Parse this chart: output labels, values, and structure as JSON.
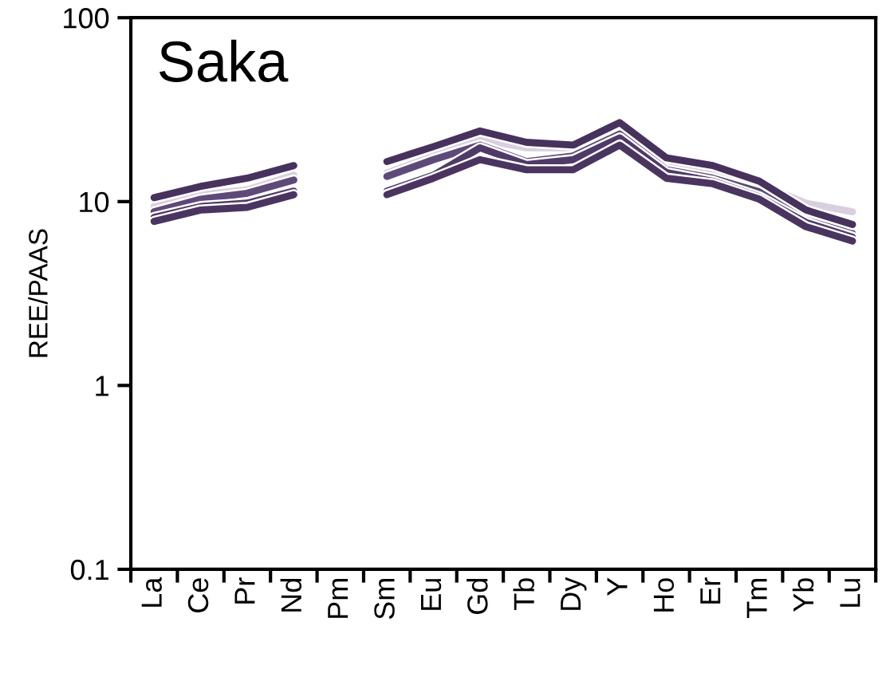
{
  "chart_data": {
    "type": "line",
    "title": "Saka",
    "ylabel": "REE/PAAS",
    "categories": [
      "La",
      "Ce",
      "Pr",
      "Nd",
      "Pm",
      "Sm",
      "Eu",
      "Gd",
      "Tb",
      "Dy",
      "Y",
      "Ho",
      "Er",
      "Tm",
      "Yb",
      "Lu"
    ],
    "series": [
      {
        "color": "#d9cfdf",
        "values": [
          9.4,
          10.9,
          11.6,
          13.9,
          null,
          14.3,
          17.7,
          21.8,
          19.6,
          19.6,
          25.9,
          16.2,
          14.6,
          12.5,
          9.8,
          8.8
        ]
      },
      {
        "color": "#5e4a78",
        "values": [
          8.8,
          10.3,
          11.1,
          13.1,
          null,
          13.7,
          16.9,
          20.3,
          16.5,
          17.7,
          23.3,
          14.9,
          13.4,
          11.3,
          7.9,
          6.7
        ]
      },
      {
        "color": "#4f3a68",
        "values": [
          8.2,
          9.4,
          9.8,
          11.4,
          null,
          11.4,
          13.9,
          19.6,
          15.9,
          16.9,
          22.2,
          14.4,
          12.9,
          10.6,
          7.7,
          6.4
        ]
      },
      {
        "color": "#4a3560",
        "values": [
          7.8,
          9.0,
          9.3,
          10.9,
          null,
          10.9,
          13.4,
          16.9,
          14.9,
          14.9,
          20.3,
          13.4,
          12.5,
          10.3,
          7.3,
          6.1
        ]
      },
      {
        "color": "#46325c",
        "values": [
          10.5,
          12.1,
          13.4,
          15.7,
          null,
          16.5,
          19.9,
          24.2,
          21.0,
          20.3,
          26.9,
          17.3,
          15.7,
          12.9,
          9.0,
          7.5
        ]
      }
    ],
    "log": true,
    "ylim": [
      0.1,
      100
    ],
    "yticks": [
      0.1,
      1,
      10,
      100
    ],
    "grid": false,
    "legend": false,
    "marker": "none",
    "line_style": "solid"
  }
}
